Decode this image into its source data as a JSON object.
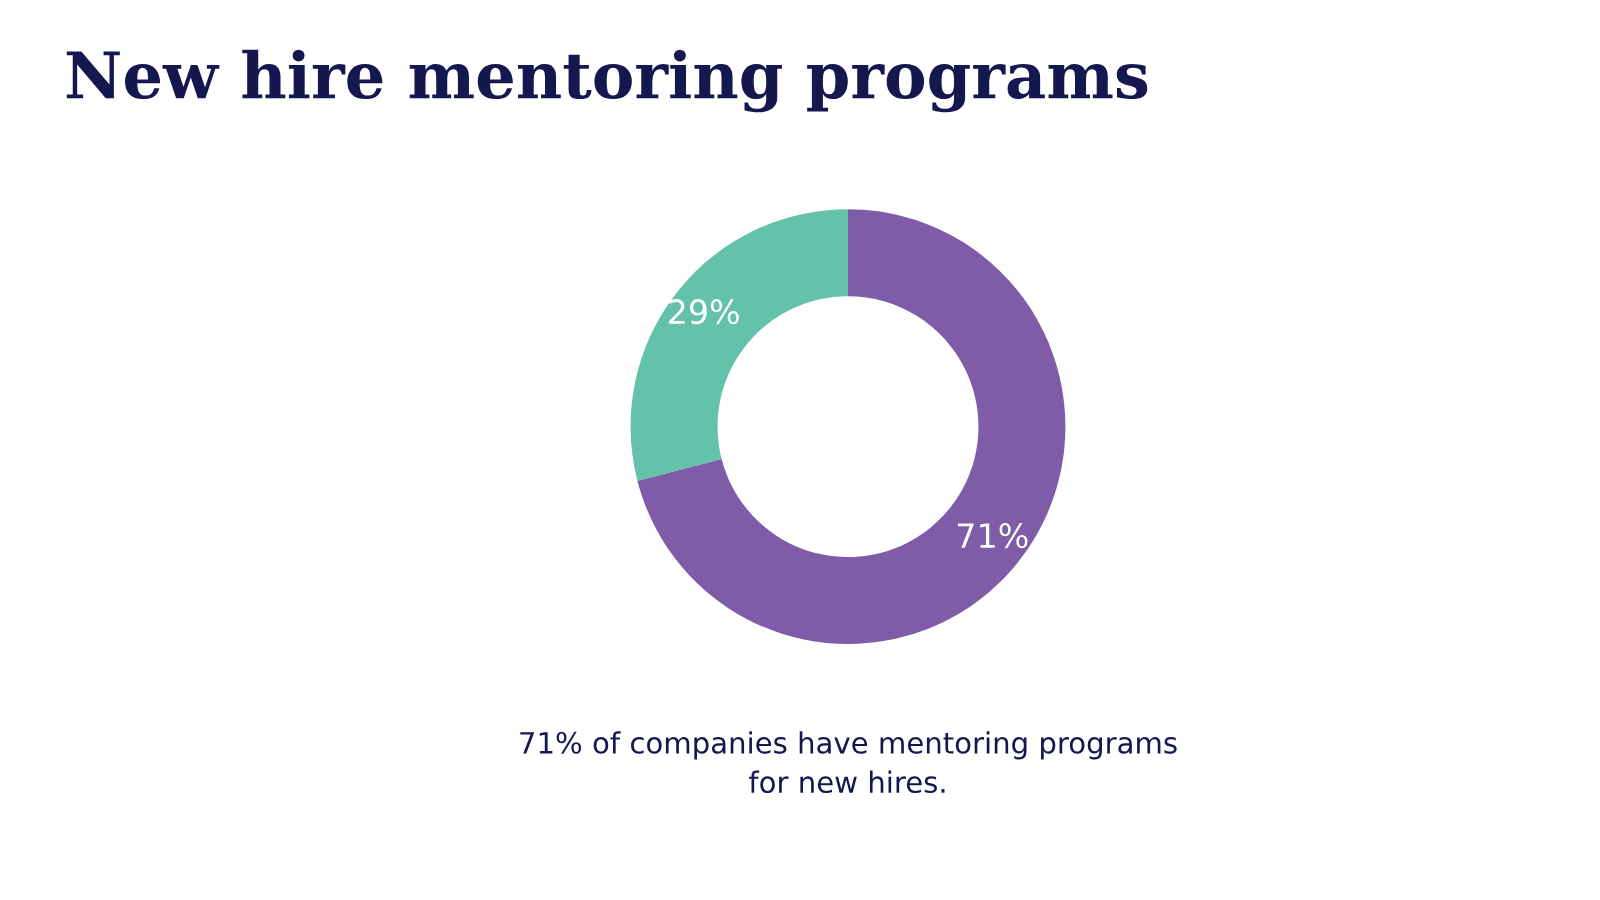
{
  "chart_data": {
    "type": "donut",
    "title": "New hire mentoring programs",
    "categories": [
      null,
      null
    ],
    "values": [
      71,
      29
    ],
    "colors": [
      "#7f5ca8",
      "#64c1aa"
    ],
    "value_labels": [
      "71%",
      "29%"
    ],
    "annotations": [
      "71% of companies have mentoring programs\nfor new hires."
    ],
    "legend": false
  }
}
